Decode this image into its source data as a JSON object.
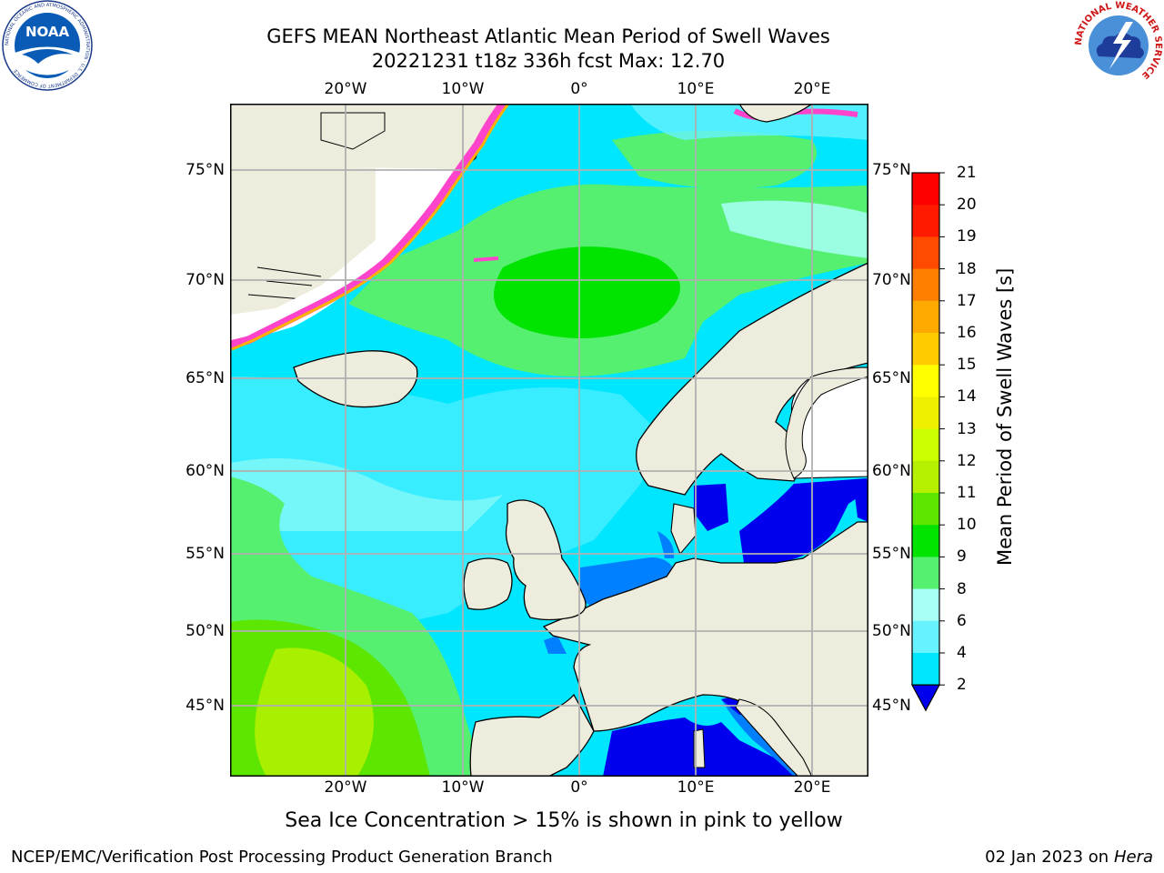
{
  "header": {
    "title_line1": "GEFS MEAN Northeast Atlantic Mean Period of Swell Waves",
    "title_line2": "20221231 t18z 336h fcst   Max: 12.70"
  },
  "logos": {
    "noaa_text": "NOAA",
    "noaa_ring": "NATIONAL OCEANIC AND ATMOSPHERIC ADMINISTRATION · U.S. DEPARTMENT OF COMMERCE",
    "nws_ring": "NATIONAL WEATHER SERVICE"
  },
  "map": {
    "lon_labels": [
      "20°W",
      "10°W",
      "0°",
      "10°E",
      "20°E"
    ],
    "lat_labels": [
      "75°N",
      "70°N",
      "65°N",
      "60°N",
      "55°N",
      "50°N",
      "45°N"
    ],
    "colors": {
      "land": "#eeecdc",
      "ice_free_white": "#ffffff",
      "gridline": "#b0b0b0"
    }
  },
  "colorbar": {
    "title": "Mean Period of Swell Waves [s]",
    "levels": [
      "2",
      "4",
      "6",
      "8",
      "9",
      "10",
      "11",
      "12",
      "13",
      "14",
      "15",
      "16",
      "17",
      "18",
      "19",
      "20",
      "21"
    ],
    "colors": [
      "#0000ee",
      "#0080ff",
      "#00e6ff",
      "#66f2ff",
      "#a8fff4",
      "#55f070",
      "#00e400",
      "#5ce600",
      "#b6f000",
      "#ccff00",
      "#eef000",
      "#ffff00",
      "#ffcc00",
      "#ffaa00",
      "#ff8000",
      "#ff4a00",
      "#ff1a00",
      "#ff0000"
    ]
  },
  "notes": {
    "ice": "Sea Ice Concentration > 15% is shown in pink to yellow"
  },
  "footer": {
    "left": "NCEP/EMC/Verification Post Processing Product Generation Branch",
    "date": "02 Jan 2023 on ",
    "machine": "Hera"
  }
}
